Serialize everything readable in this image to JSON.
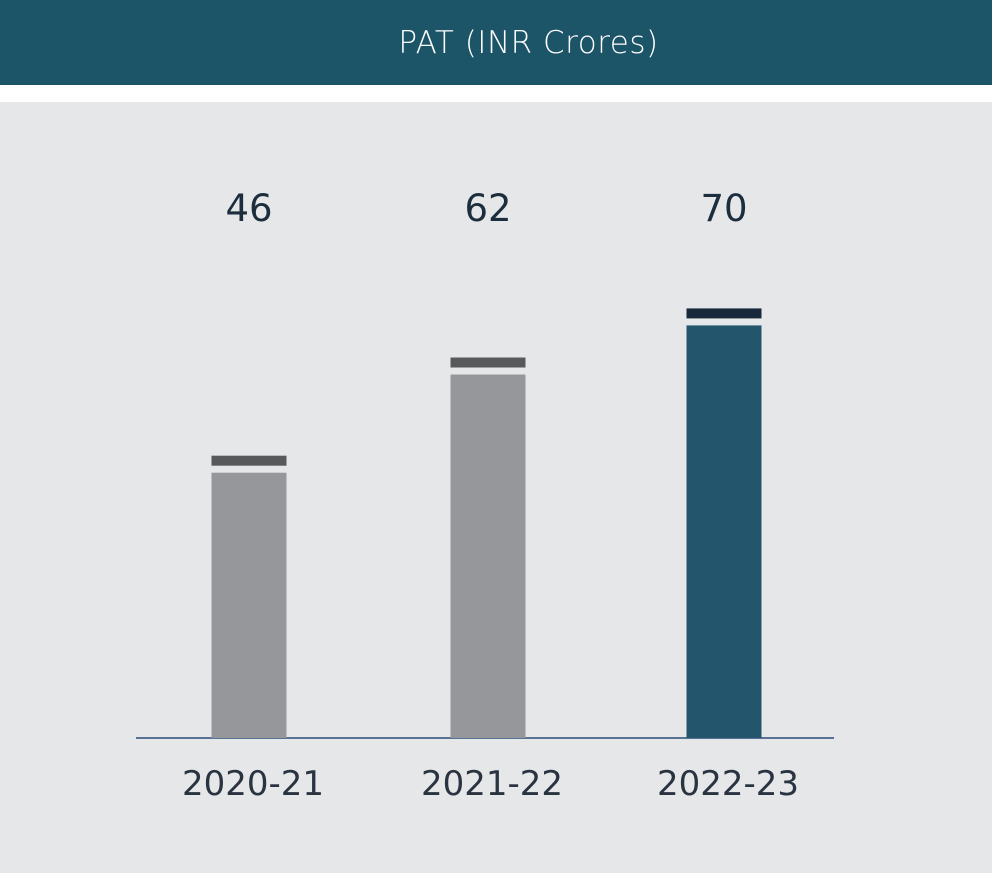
{
  "header": {
    "title": "PAT (INR Crores)"
  },
  "colors": {
    "header_bg": "#1d5568",
    "panel_bg": "#e6e7e9",
    "bar_grey": "#96979a",
    "cap_grey": "#58595b",
    "bar_highlight": "#23566d",
    "cap_highlight": "#17293a",
    "axis": "#2b4a7a"
  },
  "chart_data": {
    "type": "bar",
    "title": "PAT (INR Crores)",
    "categories": [
      "2020-21",
      "2021-22",
      "2022-23"
    ],
    "values": [
      46,
      62,
      70
    ],
    "highlight_index": 2,
    "ylim": [
      0,
      73
    ],
    "grid": false,
    "xlabel": "",
    "ylabel": ""
  }
}
